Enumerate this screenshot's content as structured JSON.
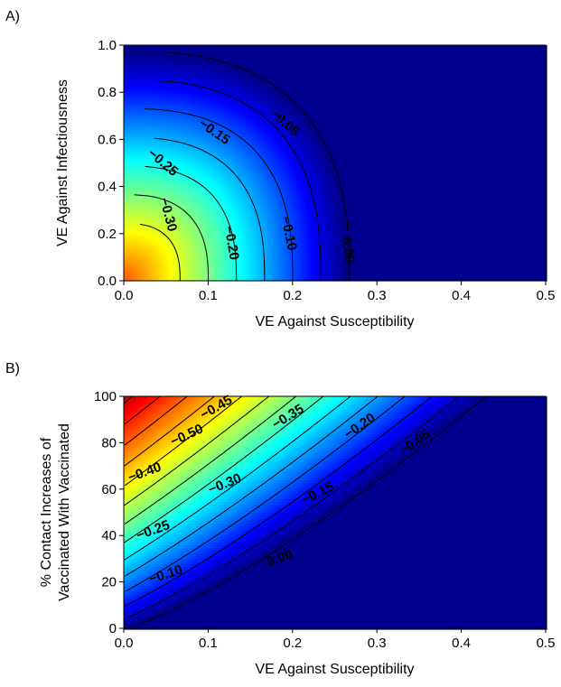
{
  "chart_data": [
    {
      "type": "heatmap",
      "panel_label": "A)",
      "xlabel": "VE Against Susceptibility",
      "ylabel": "VE Against Infectiousness",
      "xlim": [
        0,
        0.5
      ],
      "ylim": [
        0,
        1
      ],
      "x_ticks": [
        "0.0",
        "0.1",
        "0.2",
        "0.3",
        "0.4",
        "0.5"
      ],
      "y_ticks": [
        "0.0",
        "0.2",
        "0.4",
        "0.6",
        "0.8",
        "1.0"
      ],
      "colormap": "jet",
      "color_range": [
        -0.5,
        0
      ],
      "contour_levels": [
        0.0,
        -0.05,
        -0.1,
        -0.15,
        -0.2,
        -0.25,
        -0.3
      ],
      "contour_x_intercepts": [
        0.267,
        0.233,
        0.2,
        0.167,
        0.133,
        0.1,
        0.067
      ],
      "contour_labels": [
        {
          "text": "0.00",
          "x": 0.265,
          "y": 0.13,
          "angle": 80
        },
        {
          "text": "−0.05",
          "x": 0.19,
          "y": 0.67,
          "angle": 42
        },
        {
          "text": "−0.10",
          "x": 0.195,
          "y": 0.2,
          "angle": 78
        },
        {
          "text": "−0.15",
          "x": 0.107,
          "y": 0.63,
          "angle": 35
        },
        {
          "text": "−0.20",
          "x": 0.127,
          "y": 0.16,
          "angle": 80
        },
        {
          "text": "−0.25",
          "x": 0.046,
          "y": 0.5,
          "angle": 40
        },
        {
          "text": "−0.30",
          "x": 0.052,
          "y": 0.28,
          "angle": 75
        }
      ]
    },
    {
      "type": "heatmap",
      "panel_label": "B)",
      "xlabel": "VE Against Susceptibility",
      "ylabel": "% Contact Increases of Vaccinated With Vaccinated",
      "ylabel_lines": [
        "% Contact Increases of",
        "Vaccinated With Vaccinated"
      ],
      "xlim": [
        0,
        0.5
      ],
      "ylim": [
        0,
        100
      ],
      "x_ticks": [
        "0.0",
        "0.1",
        "0.2",
        "0.3",
        "0.4",
        "0.5"
      ],
      "y_ticks": [
        "0",
        "20",
        "40",
        "60",
        "80",
        "100"
      ],
      "colormap": "jet",
      "color_range": [
        -0.7,
        0
      ],
      "contour_levels": [
        0.0,
        -0.05,
        -0.1,
        -0.15,
        -0.2,
        -0.25,
        -0.3,
        -0.35,
        -0.4,
        -0.45,
        -0.5,
        -0.55,
        -0.6,
        -0.65
      ],
      "contour_labels": [
        {
          "text": "0.00",
          "x": 0.185,
          "y": 30,
          "angle": -20
        },
        {
          "text": "−0.05",
          "x": 0.345,
          "y": 80,
          "angle": -35
        },
        {
          "text": "−0.10",
          "x": 0.05,
          "y": 23,
          "angle": -18
        },
        {
          "text": "−0.15",
          "x": 0.23,
          "y": 58,
          "angle": -27
        },
        {
          "text": "−0.20",
          "x": 0.28,
          "y": 87,
          "angle": -35
        },
        {
          "text": "−0.25",
          "x": 0.035,
          "y": 42,
          "angle": -20
        },
        {
          "text": "−0.30",
          "x": 0.12,
          "y": 62,
          "angle": -22
        },
        {
          "text": "−0.35",
          "x": 0.195,
          "y": 91,
          "angle": -32
        },
        {
          "text": "−0.40",
          "x": 0.025,
          "y": 67,
          "angle": -20
        },
        {
          "text": "−0.45",
          "x": 0.11,
          "y": 95,
          "angle": -30
        },
        {
          "text": "−0.50",
          "x": 0.075,
          "y": 83,
          "angle": -25
        }
      ]
    }
  ]
}
